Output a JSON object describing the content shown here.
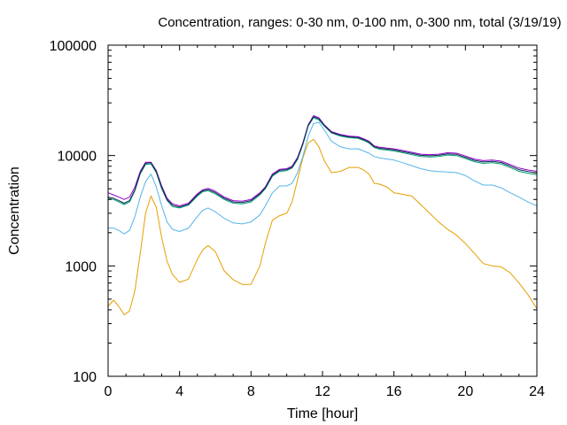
{
  "chart_data": {
    "type": "line",
    "title": "Concentration, ranges: 0-30 nm, 0-100 nm, 0-300 nm, total (3/19/19)",
    "xlabel": "Time [hour]",
    "ylabel": "Concentration",
    "xlim": [
      0,
      24
    ],
    "ylim": [
      100,
      100000
    ],
    "yscale": "log",
    "grid": false,
    "x_ticks": [
      0,
      4,
      8,
      12,
      16,
      20,
      24
    ],
    "x_tick_labels": [
      "0",
      "4",
      "8",
      "12",
      "16",
      "20",
      "24"
    ],
    "y_ticks": [
      100,
      1000,
      10000,
      100000
    ],
    "y_tick_labels": [
      "100",
      "1000",
      "10000",
      "100000"
    ],
    "series": [
      {
        "color": "#e69f00",
        "x": [
          0,
          0.3,
          0.6,
          0.9,
          1.2,
          1.5,
          1.8,
          2.1,
          2.4,
          2.7,
          3.0,
          3.3,
          3.6,
          4.0,
          4.5,
          5.0,
          5.3,
          5.6,
          6.0,
          6.5,
          7.0,
          7.5,
          8.0,
          8.5,
          8.8,
          9.2,
          9.6,
          10.0,
          10.3,
          10.6,
          10.9,
          11.2,
          11.5,
          11.8,
          12.1,
          12.5,
          13.0,
          13.5,
          14.0,
          14.3,
          14.6,
          14.9,
          15.2,
          15.6,
          16.0,
          16.5,
          17.0,
          17.5,
          18.0,
          18.5,
          19.0,
          19.5,
          20.0,
          20.5,
          21.0,
          21.5,
          22.0,
          22.5,
          23.0,
          23.5,
          24.0
        ],
        "y": [
          430,
          490,
          430,
          360,
          390,
          600,
          1300,
          3000,
          4300,
          3400,
          1800,
          1100,
          840,
          710,
          760,
          1150,
          1400,
          1530,
          1350,
          900,
          750,
          680,
          680,
          1000,
          1600,
          2600,
          2850,
          3000,
          3800,
          6000,
          9500,
          13000,
          14000,
          12000,
          9000,
          7000,
          7200,
          7800,
          7800,
          7400,
          6800,
          5600,
          5500,
          5200,
          4600,
          4450,
          4300,
          3600,
          3000,
          2500,
          2150,
          1900,
          1600,
          1300,
          1050,
          1000,
          980,
          870,
          700,
          550,
          410
        ]
      },
      {
        "color": "#56b4e9",
        "x": [
          0,
          0.3,
          0.6,
          0.9,
          1.2,
          1.5,
          1.8,
          2.1,
          2.4,
          2.7,
          3.0,
          3.3,
          3.6,
          4.0,
          4.5,
          5.0,
          5.3,
          5.6,
          6.0,
          6.5,
          7.0,
          7.5,
          8.0,
          8.5,
          8.8,
          9.2,
          9.6,
          10.0,
          10.3,
          10.6,
          10.9,
          11.2,
          11.5,
          11.8,
          12.1,
          12.5,
          13.0,
          13.5,
          14.0,
          14.3,
          14.6,
          14.9,
          15.2,
          15.6,
          16.0,
          16.5,
          17.0,
          17.5,
          18.0,
          18.5,
          19.0,
          19.5,
          20.0,
          20.5,
          21.0,
          21.5,
          22.0,
          22.5,
          23.0,
          23.5,
          24.0
        ],
        "y": [
          2200,
          2200,
          2100,
          1950,
          2100,
          2800,
          4200,
          5800,
          6800,
          5200,
          3500,
          2500,
          2150,
          2050,
          2200,
          2800,
          3200,
          3350,
          3100,
          2700,
          2450,
          2400,
          2500,
          2900,
          3500,
          4600,
          5300,
          5300,
          5600,
          7000,
          9800,
          15000,
          19500,
          20000,
          17000,
          13500,
          12000,
          11500,
          11500,
          11000,
          10500,
          9800,
          9500,
          9300,
          9100,
          8600,
          8100,
          7600,
          7300,
          7150,
          7100,
          7000,
          6600,
          5900,
          5400,
          5400,
          5100,
          4600,
          4200,
          3800,
          3500
        ]
      },
      {
        "color": "#009e73",
        "x": [
          0,
          0.3,
          0.6,
          0.9,
          1.2,
          1.5,
          1.8,
          2.1,
          2.4,
          2.7,
          3.0,
          3.3,
          3.6,
          4.0,
          4.5,
          5.0,
          5.3,
          5.6,
          6.0,
          6.5,
          7.0,
          7.5,
          8.0,
          8.5,
          8.8,
          9.2,
          9.6,
          10.0,
          10.3,
          10.6,
          10.9,
          11.2,
          11.5,
          11.8,
          12.1,
          12.5,
          13.0,
          13.5,
          14.0,
          14.3,
          14.6,
          14.9,
          15.2,
          15.6,
          16.0,
          16.5,
          17.0,
          17.5,
          18.0,
          18.5,
          19.0,
          19.5,
          20.0,
          20.5,
          21.0,
          21.5,
          22.0,
          22.5,
          23.0,
          23.5,
          24.0
        ],
        "y": [
          4100,
          4000,
          3800,
          3600,
          3800,
          4800,
          6800,
          8300,
          8400,
          7000,
          5000,
          3900,
          3450,
          3350,
          3550,
          4300,
          4700,
          4800,
          4500,
          4000,
          3700,
          3650,
          3800,
          4400,
          5000,
          6500,
          7200,
          7300,
          7700,
          9200,
          12500,
          18500,
          22000,
          21000,
          18500,
          16000,
          15000,
          14500,
          14300,
          13700,
          13000,
          11800,
          11400,
          11200,
          11000,
          10600,
          10200,
          9800,
          9700,
          9800,
          10100,
          10000,
          9400,
          8800,
          8500,
          8600,
          8400,
          7800,
          7200,
          6900,
          6700
        ]
      },
      {
        "color": "#9400d3",
        "x": [
          0,
          0.3,
          0.6,
          0.9,
          1.2,
          1.5,
          1.8,
          2.1,
          2.4,
          2.7,
          3.0,
          3.3,
          3.6,
          4.0,
          4.5,
          5.0,
          5.3,
          5.6,
          6.0,
          6.5,
          7.0,
          7.5,
          8.0,
          8.5,
          8.8,
          9.2,
          9.6,
          10.0,
          10.3,
          10.6,
          10.9,
          11.2,
          11.5,
          11.8,
          12.1,
          12.5,
          13.0,
          13.5,
          14.0,
          14.3,
          14.6,
          14.9,
          15.2,
          15.6,
          16.0,
          16.5,
          17.0,
          17.5,
          18.0,
          18.5,
          19.0,
          19.5,
          20.0,
          20.5,
          21.0,
          21.5,
          22.0,
          22.5,
          23.0,
          23.5,
          24.0
        ],
        "y": [
          4600,
          4400,
          4200,
          4000,
          4200,
          5200,
          7200,
          8700,
          8700,
          7300,
          5300,
          4100,
          3650,
          3500,
          3700,
          4500,
          4900,
          5050,
          4750,
          4200,
          3900,
          3850,
          4000,
          4600,
          5200,
          6800,
          7500,
          7600,
          8000,
          9600,
          13000,
          19000,
          23000,
          22000,
          19000,
          16500,
          15500,
          15000,
          14800,
          14200,
          13500,
          12200,
          11900,
          11700,
          11500,
          11100,
          10700,
          10300,
          10200,
          10300,
          10600,
          10500,
          9900,
          9300,
          9000,
          9100,
          8900,
          8300,
          7700,
          7400,
          7200
        ]
      },
      {
        "color": "#0e2a4d",
        "x": [
          0,
          0.3,
          0.6,
          0.9,
          1.2,
          1.5,
          1.8,
          2.1,
          2.4,
          2.7,
          3.0,
          3.3,
          3.6,
          4.0,
          4.5,
          5.0,
          5.3,
          5.6,
          6.0,
          6.5,
          7.0,
          7.5,
          8.0,
          8.5,
          8.8,
          9.2,
          9.6,
          10.0,
          10.3,
          10.6,
          10.9,
          11.2,
          11.5,
          11.8,
          12.1,
          12.5,
          13.0,
          13.5,
          14.0,
          14.3,
          14.6,
          14.9,
          15.2,
          15.6,
          16.0,
          16.5,
          17.0,
          17.5,
          18.0,
          18.5,
          19.0,
          19.5,
          20.0,
          20.5,
          21.0,
          21.5,
          22.0,
          22.5,
          23.0,
          23.5,
          24.0
        ],
        "y": [
          4200,
          4100,
          3900,
          3700,
          3900,
          4900,
          7000,
          8500,
          8600,
          7150,
          5150,
          4000,
          3550,
          3420,
          3620,
          4400,
          4800,
          4920,
          4620,
          4100,
          3800,
          3750,
          3900,
          4500,
          5100,
          6650,
          7350,
          7450,
          7850,
          9400,
          12750,
          18750,
          22500,
          21500,
          18750,
          16250,
          15250,
          14750,
          14550,
          13950,
          13250,
          12000,
          11650,
          11450,
          11250,
          10850,
          10450,
          10050,
          9950,
          10050,
          10350,
          10250,
          9650,
          9050,
          8750,
          8850,
          8650,
          8050,
          7450,
          7150,
          6950
        ]
      }
    ]
  }
}
